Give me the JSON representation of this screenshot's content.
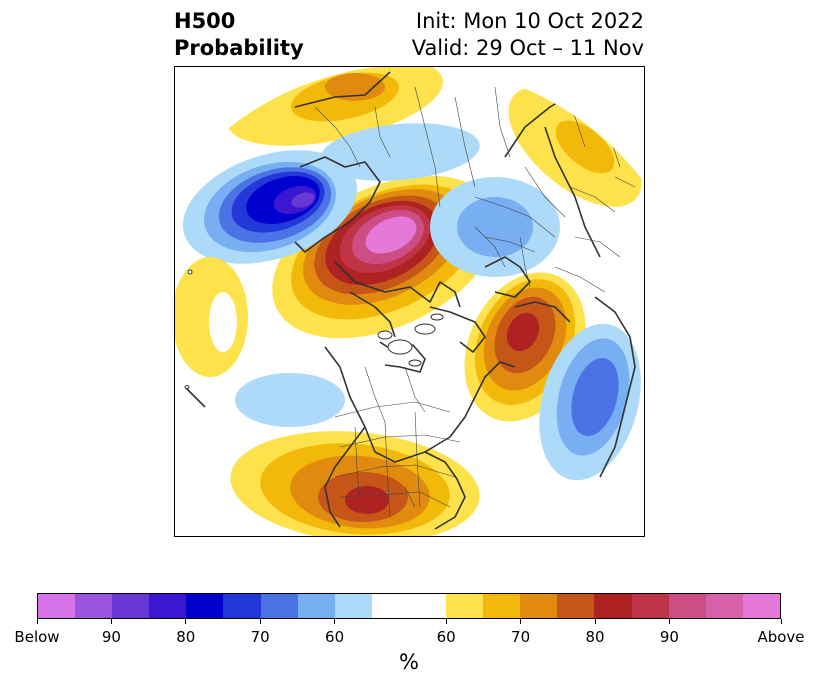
{
  "title": {
    "left_line1": "H500",
    "left_line2": "Probability",
    "right_line1": "Init: Mon 10 Oct 2022",
    "right_line2": "Valid: 29 Oct – 11 Nov"
  },
  "map": {
    "projection": "north-polar-stereographic",
    "features": [
      "coastlines",
      "country-borders",
      "us-state-borders",
      "canada-province-borders"
    ],
    "anomaly_areas": [
      {
        "region": "Alaska / Gulf of Alaska",
        "category": "above",
        "peak": "Above"
      },
      {
        "region": "Eastern Siberia",
        "category": "above",
        "peak": "70"
      },
      {
        "region": "Scandinavia / Northwest Russia",
        "category": "above",
        "peak": "60"
      },
      {
        "region": "Greenland / North Atlantic",
        "category": "above",
        "peak": "80"
      },
      {
        "region": "Central United States",
        "category": "above",
        "peak": "80"
      },
      {
        "region": "Bering Sea / Kamchatka",
        "category": "below",
        "peak": "Below"
      },
      {
        "region": "Central Russia",
        "category": "below",
        "peak": "60"
      },
      {
        "region": "Western Europe / Eastern Atlantic",
        "category": "below",
        "peak": "80"
      },
      {
        "region": "Central Pacific",
        "category": "below",
        "peak": "60"
      }
    ]
  },
  "colorbar": {
    "colors": [
      "#d673e8",
      "#9b54dd",
      "#6a38d4",
      "#3a18d2",
      "#0000cf",
      "#2238d8",
      "#4c73e6",
      "#78aef2",
      "#acdaf8",
      "#ffffff",
      "#ffffff",
      "#fde24c",
      "#f2b90a",
      "#e08a10",
      "#c65518",
      "#ae2222",
      "#c03448",
      "#cc4e85",
      "#d862aa",
      "#e579da"
    ],
    "tick_labels": [
      "Below",
      "90",
      "80",
      "70",
      "60",
      "60",
      "70",
      "80",
      "90",
      "Above"
    ],
    "unit": "%"
  }
}
